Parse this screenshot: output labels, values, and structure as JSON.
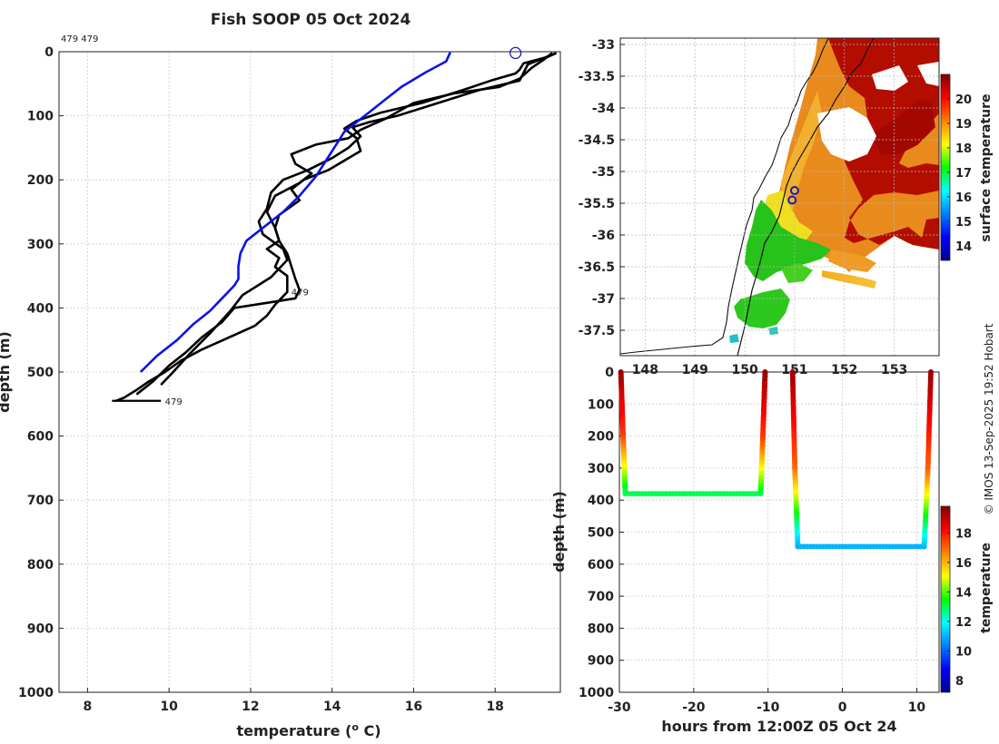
{
  "title": "Fish SOOP 05 Oct 2024",
  "credit": "© IMOS 13-Sep-2025 19:52 Hobart",
  "colors": {
    "profile": "#000000",
    "climatology": "#0a14e6",
    "marker": "#1a1ab0",
    "grid": "#cccccc"
  },
  "chart_data": [
    {
      "type": "line",
      "name": "temperature-profile",
      "xlabel": "temperature (° C)",
      "ylabel": "depth (m)",
      "xlim": [
        7.3,
        19.6
      ],
      "ylim": [
        1000,
        0
      ],
      "xticks": [
        8,
        10,
        12,
        14,
        16,
        18
      ],
      "yticks": [
        0,
        100,
        200,
        300,
        400,
        500,
        600,
        700,
        800,
        900,
        1000
      ],
      "top_label": "479 479",
      "annotations": [
        {
          "text": "479",
          "x": 13.0,
          "y": 383
        },
        {
          "text": "479",
          "x": 9.9,
          "y": 545
        }
      ],
      "surface_marker": {
        "x": 18.5,
        "y": 2
      },
      "series": [
        {
          "name": "profile-1",
          "x": [
            19.5,
            19.3,
            18.7,
            18.6,
            18.5,
            17.9,
            17.2,
            16.2,
            15.2,
            14.6,
            14.3,
            14.6,
            14.7,
            13.9,
            13.3,
            13.0,
            13.2,
            12.7,
            12.6,
            12.7,
            12.4,
            12.7,
            12.6,
            12.9,
            12.9,
            12.6,
            12.4,
            12.1,
            11.4,
            10.8,
            10.3,
            9.9,
            9.5,
            9.2,
            8.9,
            8.7
          ],
          "y": [
            2,
            8,
            18,
            28,
            34,
            45,
            60,
            80,
            95,
            108,
            120,
            135,
            155,
            185,
            200,
            215,
            232,
            255,
            275,
            295,
            308,
            322,
            336,
            350,
            375,
            395,
            412,
            428,
            448,
            465,
            482,
            500,
            515,
            528,
            540,
            545
          ]
        },
        {
          "name": "profile-2",
          "x": [
            19.4,
            19.2,
            18.9,
            18.6,
            18.1,
            17.0,
            16.0,
            15.3,
            14.7,
            14.4,
            13.6,
            13.0,
            13.1,
            13.5,
            13.2,
            12.6,
            12.4,
            12.6,
            12.7,
            12.9,
            13.0,
            13.1,
            13.2,
            13.1,
            12.4,
            11.6,
            11.3,
            10.8,
            10.4,
            10.0,
            9.6,
            9.2
          ],
          "y": [
            2,
            12,
            25,
            42,
            55,
            65,
            80,
            105,
            122,
            135,
            145,
            160,
            175,
            190,
            205,
            225,
            250,
            275,
            295,
            315,
            335,
            355,
            372,
            385,
            392,
            400,
            422,
            446,
            470,
            490,
            515,
            535
          ]
        },
        {
          "name": "profile-3",
          "x": [
            19.5,
            18.8,
            18.6,
            17.6,
            16.6,
            15.6,
            14.9,
            14.5,
            14.7,
            14.4,
            14.0,
            13.4,
            12.8,
            12.5,
            12.4,
            12.2,
            12.3,
            12.8,
            12.9,
            12.5,
            11.8,
            11.5,
            11.0,
            10.5,
            10.1,
            9.8
          ],
          "y": [
            2,
            20,
            45,
            60,
            80,
            100,
            110,
            118,
            132,
            150,
            166,
            185,
            200,
            220,
            245,
            265,
            285,
            308,
            325,
            352,
            380,
            405,
            440,
            472,
            500,
            520
          ]
        },
        {
          "name": "climatology",
          "x": [
            16.9,
            16.8,
            16.3,
            15.7,
            15.3,
            14.9,
            14.6,
            14.3,
            14.1,
            13.9,
            13.6,
            13.2,
            12.8,
            12.3,
            11.9,
            11.75,
            11.7,
            11.7,
            11.6,
            11.3,
            11.0,
            10.6,
            10.2,
            9.7,
            9.3
          ],
          "y": [
            1,
            15,
            32,
            55,
            75,
            95,
            110,
            125,
            145,
            165,
            195,
            225,
            250,
            275,
            295,
            315,
            335,
            355,
            365,
            385,
            405,
            425,
            450,
            475,
            500
          ]
        }
      ]
    },
    {
      "type": "heatmap",
      "name": "surface-temperature-map",
      "xlim": [
        147.5,
        153.9
      ],
      "ylim": [
        -37.9,
        -32.9
      ],
      "xticks": [
        148,
        149,
        150,
        151,
        152,
        153
      ],
      "xtick_labels": [
        "148",
        "149",
        "150",
        "151",
        "152",
        "153"
      ],
      "yticks": [
        -33,
        -33.5,
        -34,
        -34.5,
        -35,
        -35.5,
        -36,
        -36.5,
        -37,
        -37.5
      ],
      "yticks_labels": [
        "-33",
        "-33.5",
        "-34",
        "-34.5",
        "-35",
        "-35.5",
        "-36",
        "-36.5",
        "-37",
        "-37.5"
      ],
      "colorbar": {
        "label": "surface temperature",
        "range": [
          13.4,
          21.0
        ],
        "ticks": [
          14,
          15,
          16,
          17,
          18,
          19,
          20
        ]
      },
      "tracks": [
        {
          "lon": 151.0,
          "lat": -35.3
        },
        {
          "lon": 150.95,
          "lat": -35.45
        }
      ]
    },
    {
      "type": "scatter",
      "name": "depth-time-section",
      "xlabel": "hours from 12:00Z 05 Oct 24",
      "ylabel": "depth (m)",
      "xlim": [
        -30,
        13
      ],
      "ylim": [
        1000,
        0
      ],
      "xticks": [
        -30,
        -20,
        -10,
        0,
        10
      ],
      "yticks": [
        0,
        100,
        200,
        300,
        400,
        500,
        600,
        700,
        800,
        900,
        1000
      ],
      "colorbar": {
        "label": "temperature",
        "range": [
          7.2,
          19.8
        ],
        "ticks": [
          8,
          10,
          12,
          14,
          16,
          18
        ]
      },
      "series": [
        {
          "name": "dive-1",
          "x": [
            -29.8,
            -29.5,
            -29.2,
            -11.0,
            -10.7,
            -10.4
          ],
          "y": [
            0,
            200,
            380,
            380,
            200,
            0
          ],
          "temp": [
            19.5,
            17.5,
            13.0,
            13.0,
            17.5,
            19.5
          ]
        },
        {
          "name": "dive-2",
          "x": [
            -6.7,
            -6.4,
            -6.0,
            11.0,
            11.5,
            11.9
          ],
          "y": [
            0,
            300,
            545,
            545,
            300,
            0
          ],
          "temp": [
            19.5,
            17.0,
            11.0,
            11.0,
            17.0,
            19.5
          ]
        }
      ]
    }
  ]
}
